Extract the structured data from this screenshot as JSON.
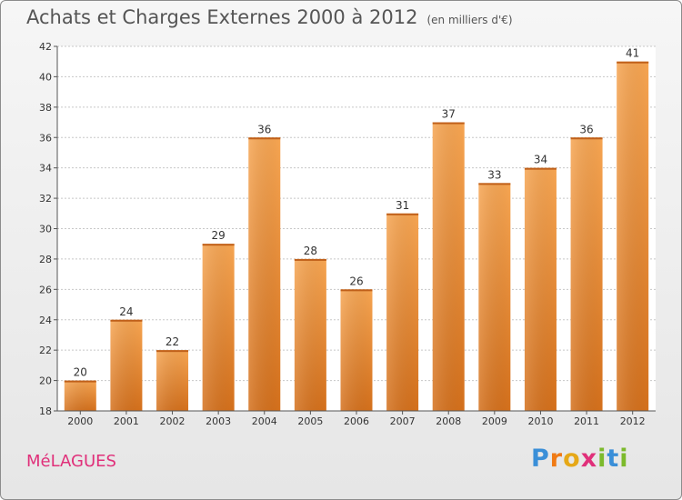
{
  "chart_data": {
    "type": "bar",
    "title": "Achats et Charges Externes 2000 à 2012",
    "unit": "(en milliers d'€)",
    "categories": [
      "2000",
      "2001",
      "2002",
      "2003",
      "2004",
      "2005",
      "2006",
      "2007",
      "2008",
      "2009",
      "2010",
      "2011",
      "2012"
    ],
    "values": [
      20,
      24,
      22,
      29,
      36,
      28,
      26,
      31,
      37,
      33,
      34,
      36,
      41
    ],
    "ylim": [
      18,
      42
    ],
    "yticks": [
      18,
      20,
      22,
      24,
      26,
      28,
      30,
      32,
      34,
      36,
      38,
      40,
      42
    ],
    "grid": true,
    "bar_color": "#f08a2c"
  },
  "commune": "MéLAGUES",
  "logo": {
    "letters": [
      "P",
      "r",
      "o",
      "x",
      "i",
      "t",
      "i"
    ],
    "colors": [
      "#3a8fd8",
      "#f07a14",
      "#e6a817",
      "#e0307a",
      "#7cba2c",
      "#3a8fd8",
      "#7cba2c"
    ]
  }
}
